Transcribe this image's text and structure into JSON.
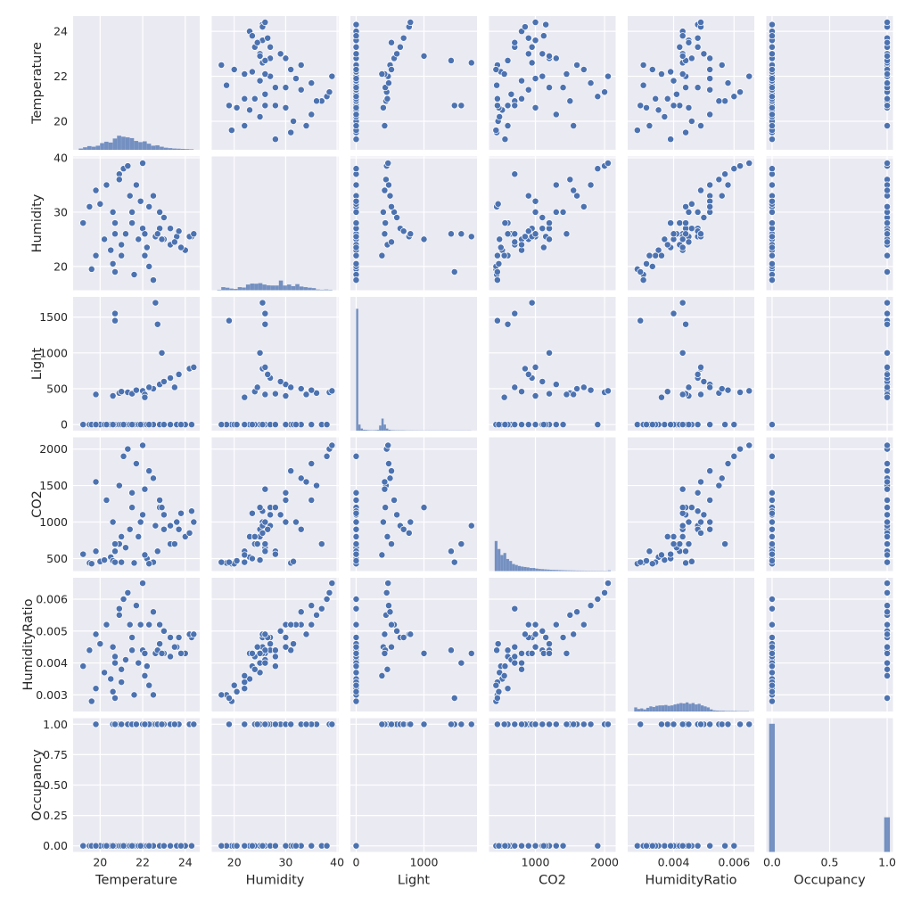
{
  "chart_data": {
    "type": "scatter",
    "subtype": "pairplot",
    "grid": true,
    "colors": {
      "background": "#eaeaf2",
      "grid": "#ffffff",
      "marker": "#4c72b0",
      "marker_edge": "#ffffff",
      "hist": "#4c72b0",
      "text": "#262626"
    },
    "variables": [
      {
        "name": "Temperature",
        "range": [
          18.73,
          24.68
        ],
        "ticks": [
          20,
          22,
          24
        ],
        "tick_labels": [
          "20",
          "22",
          "24"
        ]
      },
      {
        "name": "Humidity",
        "range": [
          15.63,
          40.24
        ],
        "ticks": [
          20,
          30,
          40
        ],
        "tick_labels": [
          "20",
          "30",
          "40"
        ]
      },
      {
        "name": "Light",
        "range": [
          -85,
          1782
        ],
        "ticks": [
          0,
          500,
          1000,
          1500
        ],
        "tick_labels": [
          "0",
          "500",
          "1000",
          "1500"
        ],
        "x_ticks": [
          0,
          1000
        ],
        "x_tick_labels": [
          "0",
          "1000"
        ]
      },
      {
        "name": "CO2",
        "range": [
          329,
          2160
        ],
        "ticks": [
          500,
          1000,
          1500,
          2000
        ],
        "tick_labels": [
          "500",
          "1000",
          "1500",
          "2000"
        ],
        "x_ticks": [
          1000,
          2000
        ],
        "x_tick_labels": [
          "1000",
          "2000"
        ]
      },
      {
        "name": "HumidityRatio",
        "range": [
          0.00248,
          0.00667
        ],
        "ticks": [
          0.003,
          0.004,
          0.005,
          0.006
        ],
        "tick_labels": [
          "0.003",
          "0.004",
          "0.005",
          "0.006"
        ],
        "x_ticks": [
          0.004,
          0.006
        ],
        "x_tick_labels": [
          "0.004",
          "0.006"
        ]
      },
      {
        "name": "Occupancy",
        "range": [
          -0.05,
          1.05
        ],
        "ticks": [
          0,
          0.25,
          0.5,
          0.75,
          1
        ],
        "tick_labels": [
          "0.00",
          "0.25",
          "0.50",
          "0.75",
          "1.00"
        ],
        "x_ticks": [
          0,
          0.5,
          1
        ],
        "x_tick_labels": [
          "0.0",
          "0.5",
          "1.0"
        ]
      }
    ],
    "records_columns": [
      "Temperature",
      "Humidity",
      "Light",
      "CO2",
      "HumidityRatio",
      "Occupancy"
    ],
    "records": [
      [
        19.5,
        31,
        0,
        440,
        0.0044,
        0
      ],
      [
        19.6,
        19.5,
        0,
        430,
        0.0028,
        0
      ],
      [
        20.0,
        31.5,
        0,
        460,
        0.0046,
        0
      ],
      [
        20.2,
        25,
        0,
        480,
        0.0037,
        0
      ],
      [
        20.5,
        23,
        0,
        520,
        0.0035,
        0
      ],
      [
        20.7,
        28,
        0,
        600,
        0.0042,
        0
      ],
      [
        20.9,
        37,
        0,
        700,
        0.0057,
        0
      ],
      [
        21.0,
        22,
        0,
        450,
        0.0034,
        0
      ],
      [
        21.2,
        26,
        0,
        650,
        0.0041,
        0
      ],
      [
        21.4,
        33,
        0,
        900,
        0.0052,
        0
      ],
      [
        21.6,
        18.5,
        0,
        440,
        0.003,
        0
      ],
      [
        21.8,
        25,
        0,
        800,
        0.004,
        0
      ],
      [
        22.0,
        27,
        0,
        1100,
        0.0044,
        0
      ],
      [
        22.2,
        23.5,
        0,
        500,
        0.0039,
        0
      ],
      [
        22.5,
        17.5,
        0,
        450,
        0.003,
        0
      ],
      [
        22.8,
        27,
        0,
        1200,
        0.0046,
        0
      ],
      [
        23.0,
        25,
        0,
        900,
        0.0043,
        0
      ],
      [
        23.3,
        24,
        0,
        700,
        0.0042,
        0
      ],
      [
        23.6,
        25.5,
        0,
        1000,
        0.0045,
        0
      ],
      [
        24.0,
        23,
        0,
        800,
        0.0043,
        0
      ],
      [
        24.3,
        25.5,
        0,
        1150,
        0.0048,
        0
      ],
      [
        19.8,
        22,
        0,
        600,
        0.0032,
        0
      ],
      [
        20.3,
        35,
        0,
        1300,
        0.0052,
        0
      ],
      [
        21.1,
        38,
        0,
        1900,
        0.006,
        0
      ],
      [
        21.5,
        30,
        0,
        1400,
        0.0048,
        0
      ],
      [
        22.3,
        20,
        0,
        430,
        0.0033,
        0
      ],
      [
        20.6,
        20.5,
        0,
        470,
        0.0031,
        0
      ],
      [
        19.2,
        28,
        0,
        560,
        0.0039,
        0
      ],
      [
        21.9,
        32,
        0,
        1000,
        0.0052,
        0
      ],
      [
        23.8,
        23.5,
        0,
        1120,
        0.0043,
        0
      ],
      [
        20.9,
        36,
        440,
        1500,
        0.0055,
        1
      ],
      [
        21.3,
        38.5,
        450,
        2000,
        0.0062,
        1
      ],
      [
        22.0,
        39,
        470,
        2050,
        0.0065,
        1
      ],
      [
        22.5,
        33,
        500,
        1600,
        0.0056,
        1
      ],
      [
        22.8,
        30,
        560,
        1300,
        0.0052,
        1
      ],
      [
        23.0,
        29,
        600,
        1100,
        0.005,
        1
      ],
      [
        23.3,
        27,
        650,
        950,
        0.0048,
        1
      ],
      [
        23.7,
        26.5,
        700,
        900,
        0.0048,
        1
      ],
      [
        24.2,
        25.5,
        780,
        850,
        0.0049,
        1
      ],
      [
        20.6,
        30,
        400,
        1000,
        0.0045,
        1
      ],
      [
        21.5,
        28,
        430,
        1200,
        0.0044,
        1
      ],
      [
        22.1,
        26,
        420,
        1450,
        0.0043,
        1
      ],
      [
        21.0,
        24,
        460,
        800,
        0.0038,
        1
      ],
      [
        20.7,
        26,
        1550,
        700,
        0.004,
        1
      ],
      [
        20.7,
        19,
        1450,
        450,
        0.0029,
        1
      ],
      [
        22.6,
        25.5,
        1700,
        950,
        0.0043,
        1
      ],
      [
        22.7,
        26,
        1400,
        600,
        0.0044,
        1
      ],
      [
        22.9,
        25,
        1000,
        1200,
        0.0043,
        1
      ],
      [
        21.7,
        35,
        480,
        1800,
        0.0058,
        1
      ],
      [
        22.3,
        31,
        520,
        1700,
        0.0052,
        1
      ],
      [
        19.8,
        34,
        420,
        1550,
        0.0049,
        1
      ],
      [
        22.1,
        22,
        380,
        550,
        0.0036,
        1
      ],
      [
        23.5,
        24.5,
        520,
        700,
        0.0045,
        1
      ],
      [
        24.4,
        26,
        800,
        1000,
        0.0049,
        1
      ]
    ],
    "diag_count_max": 6700,
    "histograms": [
      {
        "variable": "Temperature",
        "bin_start": 19.0,
        "bin_width": 0.2,
        "counts": [
          60,
          120,
          180,
          150,
          200,
          330,
          400,
          360,
          560,
          700,
          650,
          620,
          580,
          440,
          380,
          420,
          300,
          200,
          220,
          150,
          100,
          80,
          60,
          50,
          40,
          30,
          20
        ]
      },
      {
        "variable": "Humidity",
        "bin_start": 16.7,
        "bin_width": 0.8,
        "counts": [
          20,
          150,
          120,
          80,
          60,
          150,
          130,
          280,
          330,
          320,
          350,
          280,
          240,
          230,
          230,
          480,
          230,
          280,
          200,
          300,
          180,
          150,
          120,
          100,
          30,
          20,
          30,
          20
        ]
      },
      {
        "variable": "Light",
        "bin_start": 0,
        "bin_width": 34,
        "counts": [
          6100,
          300,
          100,
          40,
          30,
          20,
          15,
          15,
          20,
          30,
          250,
          600,
          300,
          100,
          40,
          20,
          15,
          10,
          10,
          8,
          8,
          6,
          5,
          5,
          5,
          4,
          4,
          3,
          3,
          3,
          3,
          3,
          2,
          2,
          2,
          2,
          2,
          2,
          2,
          2,
          2,
          2,
          2,
          2,
          2,
          2,
          2,
          2,
          2,
          2
        ]
      },
      {
        "variable": "CO2",
        "bin_start": 412,
        "bin_width": 42,
        "counts": [
          1500,
          1100,
          800,
          900,
          600,
          500,
          350,
          300,
          250,
          220,
          200,
          180,
          150,
          150,
          120,
          100,
          90,
          80,
          70,
          60,
          55,
          50,
          45,
          40,
          35,
          30,
          28,
          25,
          22,
          20,
          18,
          16,
          14,
          12,
          12,
          10,
          10,
          10,
          8,
          30
        ]
      },
      {
        "variable": "HumidityRatio",
        "bin_start": 0.0027,
        "bin_width": 0.0001,
        "counts": [
          200,
          120,
          150,
          100,
          180,
          250,
          220,
          280,
          300,
          300,
          320,
          280,
          300,
          350,
          380,
          420,
          400,
          450,
          380,
          420,
          350,
          380,
          300,
          250,
          200,
          100,
          50,
          40,
          30,
          30,
          20,
          20,
          20,
          20,
          10,
          10,
          10,
          10
        ]
      },
      {
        "variable": "Occupancy",
        "bin_start": -0.025,
        "bin_width": 0.05,
        "counts": [
          6414,
          0,
          0,
          0,
          0,
          0,
          0,
          0,
          0,
          0,
          0,
          0,
          0,
          0,
          0,
          0,
          0,
          0,
          0,
          0,
          1729
        ]
      }
    ]
  }
}
